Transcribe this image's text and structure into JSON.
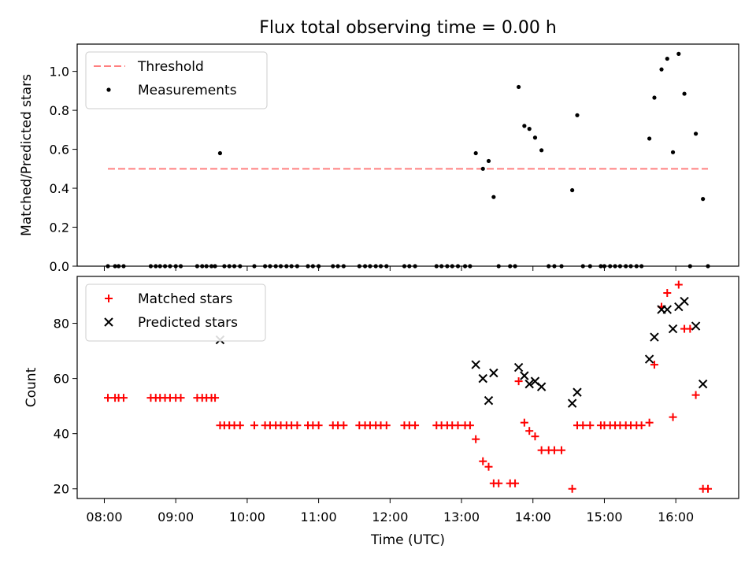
{
  "title": "Flux total observing time = 0.00 h",
  "chart_data": [
    {
      "type": "scatter",
      "panel": "top",
      "ylabel": "Matched/Predicted stars",
      "xlabel": "",
      "xlim": [
        7.62,
        16.88
      ],
      "ylim": [
        0.0,
        1.14
      ],
      "yticks": [
        0.0,
        0.2,
        0.4,
        0.6,
        0.8,
        1.0
      ],
      "ytick_labels": [
        "0.0",
        "0.2",
        "0.4",
        "0.6",
        "0.8",
        "1.0"
      ],
      "xticks": [
        8,
        9,
        10,
        11,
        12,
        13,
        14,
        15,
        16
      ],
      "xtick_labels": [
        "08:00",
        "09:00",
        "10:00",
        "11:00",
        "12:00",
        "13:00",
        "14:00",
        "15:00",
        "16:00"
      ],
      "grid": false,
      "legend_position": "top-left",
      "threshold": {
        "name": "Threshold",
        "y": 0.5,
        "x_range": [
          8.05,
          16.45
        ],
        "color": "#ff8080"
      },
      "series": [
        {
          "name": "Measurements",
          "color": "#000000",
          "points": [
            [
              8.05,
              0
            ],
            [
              8.15,
              0
            ],
            [
              8.2,
              0
            ],
            [
              8.27,
              0
            ],
            [
              8.65,
              0
            ],
            [
              8.72,
              0
            ],
            [
              8.78,
              0
            ],
            [
              8.85,
              0
            ],
            [
              8.92,
              0
            ],
            [
              9.0,
              0
            ],
            [
              9.07,
              0
            ],
            [
              9.3,
              0
            ],
            [
              9.37,
              0
            ],
            [
              9.43,
              0
            ],
            [
              9.5,
              0
            ],
            [
              9.55,
              0
            ],
            [
              9.62,
              0.58
            ],
            [
              9.68,
              0
            ],
            [
              9.75,
              0
            ],
            [
              9.82,
              0
            ],
            [
              9.9,
              0
            ],
            [
              10.1,
              0
            ],
            [
              10.25,
              0
            ],
            [
              10.32,
              0
            ],
            [
              10.4,
              0
            ],
            [
              10.47,
              0
            ],
            [
              10.55,
              0
            ],
            [
              10.62,
              0
            ],
            [
              10.7,
              0
            ],
            [
              10.85,
              0
            ],
            [
              10.92,
              0
            ],
            [
              11.0,
              0
            ],
            [
              11.2,
              0
            ],
            [
              11.27,
              0
            ],
            [
              11.35,
              0
            ],
            [
              11.57,
              0
            ],
            [
              11.65,
              0
            ],
            [
              11.72,
              0
            ],
            [
              11.8,
              0
            ],
            [
              11.87,
              0
            ],
            [
              11.95,
              0
            ],
            [
              12.2,
              0
            ],
            [
              12.27,
              0
            ],
            [
              12.35,
              0
            ],
            [
              12.65,
              0
            ],
            [
              12.72,
              0
            ],
            [
              12.8,
              0
            ],
            [
              12.87,
              0
            ],
            [
              12.95,
              0
            ],
            [
              13.05,
              0
            ],
            [
              13.12,
              0
            ],
            [
              13.2,
              0.58
            ],
            [
              13.3,
              0.5
            ],
            [
              13.38,
              0.54
            ],
            [
              13.45,
              0.355
            ],
            [
              13.52,
              0
            ],
            [
              13.68,
              0
            ],
            [
              13.75,
              0
            ],
            [
              13.8,
              0.92
            ],
            [
              13.88,
              0.72
            ],
            [
              13.95,
              0.705
            ],
            [
              14.03,
              0.66
            ],
            [
              14.12,
              0.595
            ],
            [
              14.22,
              0
            ],
            [
              14.3,
              0
            ],
            [
              14.4,
              0
            ],
            [
              14.55,
              0.39
            ],
            [
              14.62,
              0.775
            ],
            [
              14.7,
              0
            ],
            [
              14.8,
              0
            ],
            [
              14.95,
              0
            ],
            [
              15.0,
              0
            ],
            [
              15.08,
              0
            ],
            [
              15.15,
              0
            ],
            [
              15.22,
              0
            ],
            [
              15.3,
              0
            ],
            [
              15.37,
              0
            ],
            [
              15.45,
              0
            ],
            [
              15.52,
              0
            ],
            [
              15.63,
              0.655
            ],
            [
              15.7,
              0.865
            ],
            [
              15.8,
              1.01
            ],
            [
              15.88,
              1.065
            ],
            [
              15.96,
              0.585
            ],
            [
              16.04,
              1.09
            ],
            [
              16.12,
              0.885
            ],
            [
              16.2,
              0
            ],
            [
              16.28,
              0.68
            ],
            [
              16.38,
              0.345
            ],
            [
              16.45,
              0
            ]
          ]
        }
      ]
    },
    {
      "type": "scatter",
      "panel": "bottom",
      "ylabel": "Count",
      "xlabel": "Time (UTC)",
      "xlim": [
        7.62,
        16.88
      ],
      "ylim": [
        16.5,
        97
      ],
      "yticks": [
        20,
        40,
        60,
        80
      ],
      "ytick_labels": [
        "20",
        "40",
        "60",
        "80"
      ],
      "xticks": [
        8,
        9,
        10,
        11,
        12,
        13,
        14,
        15,
        16
      ],
      "xtick_labels": [
        "08:00",
        "09:00",
        "10:00",
        "11:00",
        "12:00",
        "13:00",
        "14:00",
        "15:00",
        "16:00"
      ],
      "grid": false,
      "legend_position": "top-left",
      "series": [
        {
          "name": "Matched stars",
          "marker": "plus",
          "color": "#ff0000",
          "points": [
            [
              8.05,
              53
            ],
            [
              8.15,
              53
            ],
            [
              8.2,
              53
            ],
            [
              8.27,
              53
            ],
            [
              8.65,
              53
            ],
            [
              8.72,
              53
            ],
            [
              8.78,
              53
            ],
            [
              8.85,
              53
            ],
            [
              8.92,
              53
            ],
            [
              9.0,
              53
            ],
            [
              9.07,
              53
            ],
            [
              9.3,
              53
            ],
            [
              9.37,
              53
            ],
            [
              9.43,
              53
            ],
            [
              9.5,
              53
            ],
            [
              9.55,
              53
            ],
            [
              9.62,
              43
            ],
            [
              9.68,
              43
            ],
            [
              9.75,
              43
            ],
            [
              9.82,
              43
            ],
            [
              9.9,
              43
            ],
            [
              10.1,
              43
            ],
            [
              10.25,
              43
            ],
            [
              10.32,
              43
            ],
            [
              10.4,
              43
            ],
            [
              10.47,
              43
            ],
            [
              10.55,
              43
            ],
            [
              10.62,
              43
            ],
            [
              10.7,
              43
            ],
            [
              10.85,
              43
            ],
            [
              10.92,
              43
            ],
            [
              11.0,
              43
            ],
            [
              11.2,
              43
            ],
            [
              11.27,
              43
            ],
            [
              11.35,
              43
            ],
            [
              11.57,
              43
            ],
            [
              11.65,
              43
            ],
            [
              11.72,
              43
            ],
            [
              11.8,
              43
            ],
            [
              11.87,
              43
            ],
            [
              11.95,
              43
            ],
            [
              12.2,
              43
            ],
            [
              12.27,
              43
            ],
            [
              12.35,
              43
            ],
            [
              12.65,
              43
            ],
            [
              12.72,
              43
            ],
            [
              12.8,
              43
            ],
            [
              12.87,
              43
            ],
            [
              12.95,
              43
            ],
            [
              13.05,
              43
            ],
            [
              13.12,
              43
            ],
            [
              13.2,
              38
            ],
            [
              13.3,
              30
            ],
            [
              13.38,
              28
            ],
            [
              13.45,
              22
            ],
            [
              13.52,
              22
            ],
            [
              13.68,
              22
            ],
            [
              13.75,
              22
            ],
            [
              13.8,
              59
            ],
            [
              13.88,
              44
            ],
            [
              13.95,
              41
            ],
            [
              14.03,
              39
            ],
            [
              14.12,
              34
            ],
            [
              14.22,
              34
            ],
            [
              14.3,
              34
            ],
            [
              14.4,
              34
            ],
            [
              14.55,
              20
            ],
            [
              14.62,
              43
            ],
            [
              14.7,
              43
            ],
            [
              14.8,
              43
            ],
            [
              14.95,
              43
            ],
            [
              15.0,
              43
            ],
            [
              15.08,
              43
            ],
            [
              15.15,
              43
            ],
            [
              15.22,
              43
            ],
            [
              15.3,
              43
            ],
            [
              15.37,
              43
            ],
            [
              15.45,
              43
            ],
            [
              15.52,
              43
            ],
            [
              15.63,
              44
            ],
            [
              15.7,
              65
            ],
            [
              15.8,
              86
            ],
            [
              15.88,
              91
            ],
            [
              15.96,
              46
            ],
            [
              16.04,
              94
            ],
            [
              16.12,
              78
            ],
            [
              16.2,
              78
            ],
            [
              16.28,
              54
            ],
            [
              16.38,
              20
            ],
            [
              16.45,
              20
            ]
          ]
        },
        {
          "name": "Predicted stars",
          "marker": "x",
          "color": "#000000",
          "points": [
            [
              9.62,
              74
            ],
            [
              13.2,
              65
            ],
            [
              13.3,
              60
            ],
            [
              13.38,
              52
            ],
            [
              13.45,
              62
            ],
            [
              13.8,
              64
            ],
            [
              13.88,
              61
            ],
            [
              13.95,
              58
            ],
            [
              14.03,
              59
            ],
            [
              14.12,
              57
            ],
            [
              14.55,
              51
            ],
            [
              14.62,
              55
            ],
            [
              15.63,
              67
            ],
            [
              15.7,
              75
            ],
            [
              15.8,
              85
            ],
            [
              15.88,
              85
            ],
            [
              15.96,
              78
            ],
            [
              16.04,
              86
            ],
            [
              16.12,
              88
            ],
            [
              16.28,
              79
            ],
            [
              16.38,
              58
            ]
          ]
        }
      ]
    }
  ]
}
